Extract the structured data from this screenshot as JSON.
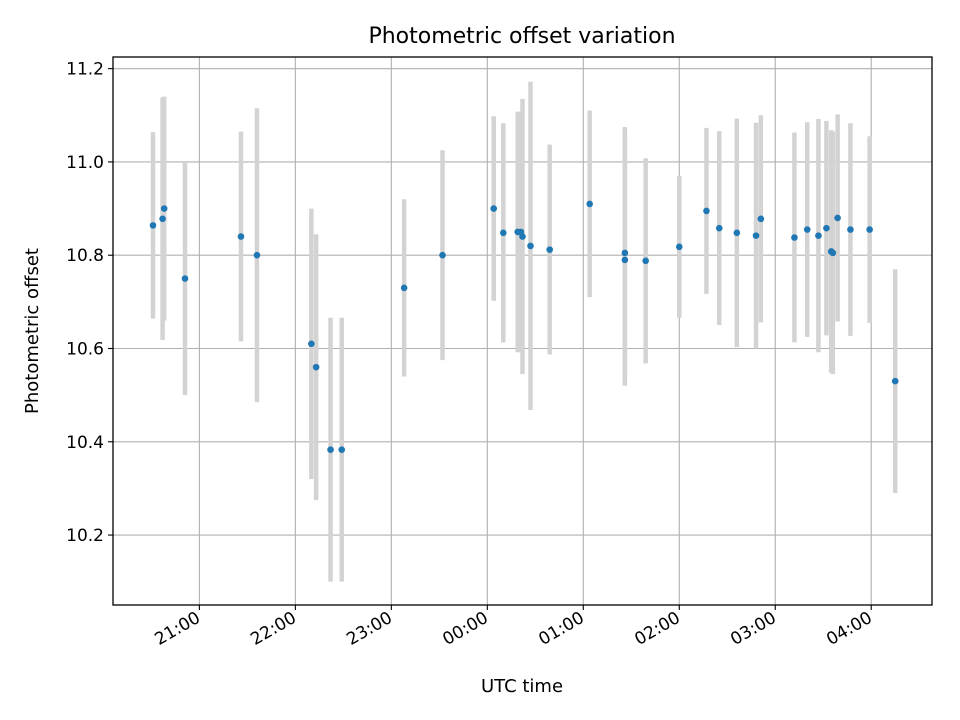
{
  "chart_data": {
    "type": "scatter",
    "title": "Photometric offset variation",
    "xlabel": "UTC time",
    "ylabel": "Photometric offset",
    "x_axis_type": "time",
    "xlim": [
      "20:06",
      "04:38"
    ],
    "ylim": [
      10.05,
      11.225
    ],
    "x_ticks": [
      "21:00",
      "22:00",
      "23:00",
      "00:00",
      "01:00",
      "02:00",
      "03:00",
      "04:00"
    ],
    "y_ticks": [
      10.2,
      10.4,
      10.6,
      10.8,
      11.0,
      11.2
    ],
    "y_tick_labels": [
      "10.2",
      "10.4",
      "10.6",
      "10.8",
      "11.0",
      "11.2"
    ],
    "grid": true,
    "colors": {
      "points": "#1f77b4",
      "error_bars": "#d3d3d3",
      "grid": "#b0b0b0"
    },
    "points": [
      {
        "x": "20:31",
        "y": 10.864,
        "err": 0.2
      },
      {
        "x": "20:37",
        "y": 10.878,
        "err": 0.26
      },
      {
        "x": "20:38",
        "y": 10.9,
        "err": 0.24
      },
      {
        "x": "20:51",
        "y": 10.75,
        "err": 0.25
      },
      {
        "x": "21:26",
        "y": 10.84,
        "err": 0.225
      },
      {
        "x": "21:36",
        "y": 10.8,
        "err": 0.315
      },
      {
        "x": "22:10",
        "y": 10.61,
        "err": 0.29
      },
      {
        "x": "22:13",
        "y": 10.56,
        "err": 0.285
      },
      {
        "x": "22:22",
        "y": 10.383,
        "err": 0.283
      },
      {
        "x": "22:29",
        "y": 10.383,
        "err": 0.283
      },
      {
        "x": "23:08",
        "y": 10.73,
        "err": 0.19
      },
      {
        "x": "23:32",
        "y": 10.8,
        "err": 0.225
      },
      {
        "x": "00:04",
        "y": 10.9,
        "err": 0.198
      },
      {
        "x": "00:10",
        "y": 10.848,
        "err": 0.235
      },
      {
        "x": "00:19",
        "y": 10.85,
        "err": 0.258
      },
      {
        "x": "00:21",
        "y": 10.85,
        "err": 0.258
      },
      {
        "x": "00:22",
        "y": 10.84,
        "err": 0.295
      },
      {
        "x": "00:27",
        "y": 10.82,
        "err": 0.352
      },
      {
        "x": "00:39",
        "y": 10.812,
        "err": 0.225
      },
      {
        "x": "01:04",
        "y": 10.91,
        "err": 0.2
      },
      {
        "x": "01:26",
        "y": 10.79,
        "err": 0.27
      },
      {
        "x": "01:26",
        "y": 10.805,
        "err": 0.27
      },
      {
        "x": "01:39",
        "y": 10.788,
        "err": 0.22
      },
      {
        "x": "02:00",
        "y": 10.818,
        "err": 0.152
      },
      {
        "x": "02:17",
        "y": 10.895,
        "err": 0.178
      },
      {
        "x": "02:25",
        "y": 10.858,
        "err": 0.208
      },
      {
        "x": "02:36",
        "y": 10.848,
        "err": 0.245
      },
      {
        "x": "02:48",
        "y": 10.842,
        "err": 0.242
      },
      {
        "x": "02:51",
        "y": 10.878,
        "err": 0.222
      },
      {
        "x": "03:12",
        "y": 10.838,
        "err": 0.225
      },
      {
        "x": "03:20",
        "y": 10.855,
        "err": 0.23
      },
      {
        "x": "03:27",
        "y": 10.842,
        "err": 0.25
      },
      {
        "x": "03:32",
        "y": 10.858,
        "err": 0.23
      },
      {
        "x": "03:35",
        "y": 10.808,
        "err": 0.26
      },
      {
        "x": "03:36",
        "y": 10.805,
        "err": 0.26
      },
      {
        "x": "03:39",
        "y": 10.88,
        "err": 0.222
      },
      {
        "x": "03:47",
        "y": 10.855,
        "err": 0.228
      },
      {
        "x": "03:59",
        "y": 10.855,
        "err": 0.2
      },
      {
        "x": "04:15",
        "y": 10.53,
        "err": 0.24
      }
    ]
  }
}
